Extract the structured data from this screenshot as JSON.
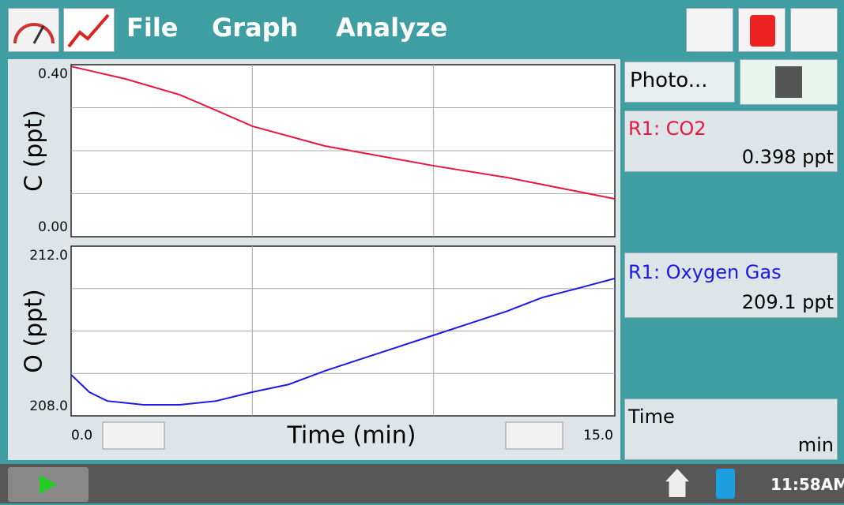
{
  "menu": [
    "File",
    "Graph",
    "Analyze"
  ],
  "x_axis": {
    "label": "Time (min)",
    "xlim": [
      0,
      15
    ],
    "xticks": [
      {
        "value": 0,
        "label": "0.0"
      },
      {
        "value": 15,
        "label": "15.0"
      }
    ],
    "xgrid": [
      5,
      10
    ]
  },
  "chart_data": [
    {
      "type": "line",
      "ylabel": "C (ppt)",
      "ylim": [
        0,
        0.4
      ],
      "yticks": [
        {
          "value": 0,
          "label": "0.00"
        },
        {
          "value": 0.4,
          "label": "0.40"
        }
      ],
      "ygrid": [
        0.1,
        0.2,
        0.3
      ],
      "x": [
        0,
        1.5,
        3,
        4,
        5,
        7,
        10,
        12,
        15
      ],
      "series": [
        {
          "name": "R1: CO2",
          "color": "#e8163f",
          "values": [
            0.396,
            0.367,
            0.33,
            0.294,
            0.257,
            0.211,
            0.165,
            0.138,
            0.088
          ]
        }
      ]
    },
    {
      "type": "line",
      "ylabel": "O (ppt)",
      "ylim": [
        208,
        212
      ],
      "yticks": [
        {
          "value": 208,
          "label": "208.0"
        },
        {
          "value": 212,
          "label": "212.0"
        }
      ],
      "ygrid": [
        209,
        210,
        211
      ],
      "x": [
        0,
        0.5,
        1,
        2,
        3,
        4,
        5,
        6,
        7,
        8,
        9,
        10,
        11,
        12,
        13,
        14,
        15
      ],
      "series": [
        {
          "name": "R1: Oxygen Gas",
          "color": "#1a1ae6",
          "values": [
            208.97,
            208.56,
            208.35,
            208.26,
            208.26,
            208.35,
            208.56,
            208.74,
            209.06,
            209.34,
            209.62,
            209.9,
            210.18,
            210.46,
            210.79,
            211.01,
            211.24
          ]
        }
      ]
    }
  ],
  "sidebar": {
    "photo": "Photo...",
    "readings": [
      "0.398 ppt",
      "209.1 ppt"
    ],
    "time_label": "Time",
    "time_unit": "min"
  },
  "status": {
    "clock": "11:58AM"
  }
}
